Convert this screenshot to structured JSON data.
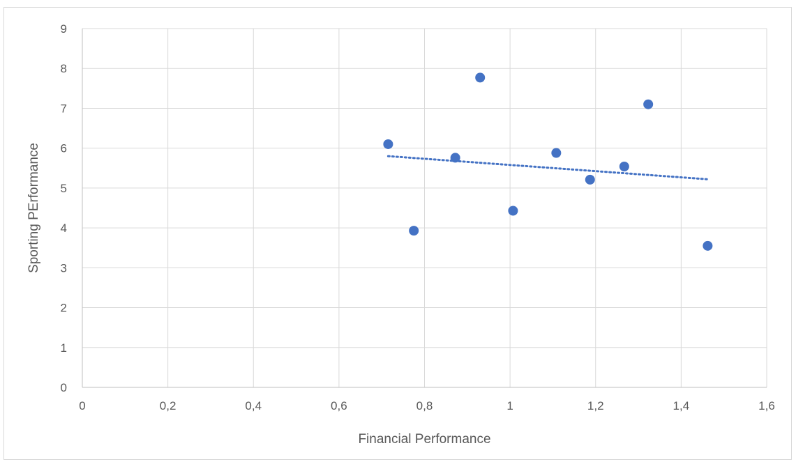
{
  "chart_data": {
    "type": "scatter",
    "title": "",
    "xlabel": "Financial Performance",
    "ylabel": "Sporting PErformance",
    "xlim": [
      0,
      1.6
    ],
    "ylim": [
      0,
      9
    ],
    "x_ticks": [
      0,
      0.2,
      0.4,
      0.6,
      0.8,
      1,
      1.2,
      1.4,
      1.6
    ],
    "x_tick_labels": [
      "0",
      "0,2",
      "0,4",
      "0,6",
      "0,8",
      "1",
      "1,2",
      "1,4",
      "1,6"
    ],
    "y_ticks": [
      0,
      1,
      2,
      3,
      4,
      5,
      6,
      7,
      8,
      9
    ],
    "y_tick_labels": [
      "0",
      "1",
      "2",
      "3",
      "4",
      "5",
      "6",
      "7",
      "8",
      "9"
    ],
    "grid": true,
    "legend": false,
    "series": [
      {
        "marker_color": "#4472c4",
        "points": [
          {
            "x": 0.715,
            "y": 6.1
          },
          {
            "x": 0.775,
            "y": 3.93
          },
          {
            "x": 0.872,
            "y": 5.76
          },
          {
            "x": 0.93,
            "y": 7.77
          },
          {
            "x": 1.007,
            "y": 4.43
          },
          {
            "x": 1.108,
            "y": 5.88
          },
          {
            "x": 1.187,
            "y": 5.21
          },
          {
            "x": 1.267,
            "y": 5.54
          },
          {
            "x": 1.323,
            "y": 7.1
          },
          {
            "x": 1.462,
            "y": 3.55
          }
        ]
      }
    ],
    "trendline": {
      "type": "linear",
      "style": "dotted",
      "color": "#4472c4",
      "x_start": 0.715,
      "x_end": 1.462,
      "y_start": 5.8,
      "y_end": 5.22
    }
  }
}
